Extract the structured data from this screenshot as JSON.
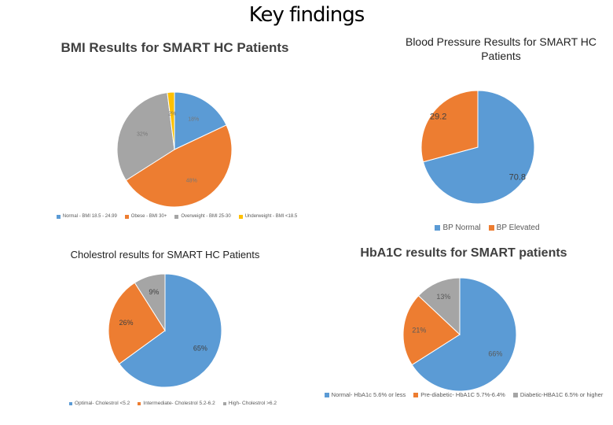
{
  "title": "Key findings",
  "chart_data": [
    {
      "type": "pie",
      "title": "BMI Results for SMART HC Patients",
      "categories": [
        "Normal - BMI 18.5 - 24.99",
        "Obese - BMI 30+",
        "Overweight - BMI 25-30",
        "Underweight - BMI <18.5"
      ],
      "values": [
        18,
        48,
        32,
        2
      ],
      "value_labels": [
        "18%",
        "48%",
        "32%",
        "2%"
      ],
      "colors": [
        "#5b9bd5",
        "#ed7d31",
        "#a5a5a5",
        "#ffc000"
      ]
    },
    {
      "type": "pie",
      "title": "Blood Pressure Results for SMART HC Patients",
      "categories": [
        "BP Normal",
        "BP Elevated"
      ],
      "values": [
        70.8,
        29.2
      ],
      "colors": [
        "#5b9bd5",
        "#ed7d31"
      ]
    },
    {
      "type": "pie",
      "title": "Cholestrol results for SMART HC Patients",
      "categories": [
        "Optimal- Cholestrol <5.2",
        "Intermediate- Cholestrol 5.2-6.2",
        "High- Cholestrol >6.2"
      ],
      "values": [
        65,
        26,
        9
      ],
      "value_labels": [
        "65%",
        "26%",
        "9%"
      ],
      "colors": [
        "#5b9bd5",
        "#ed7d31",
        "#a5a5a5"
      ]
    },
    {
      "type": "pie",
      "title": "HbA1C results for SMART patients",
      "categories": [
        "Normal- HbA1c 5.6% or less",
        "Pre-diabetic- HbA1C 5.7%-6.4%",
        "Diabetic-HBA1C 6.5% or higher"
      ],
      "values": [
        66,
        21,
        13
      ],
      "value_labels": [
        "66%",
        "21%",
        "13%"
      ],
      "colors": [
        "#5b9bd5",
        "#ed7d31",
        "#a5a5a5"
      ]
    }
  ]
}
